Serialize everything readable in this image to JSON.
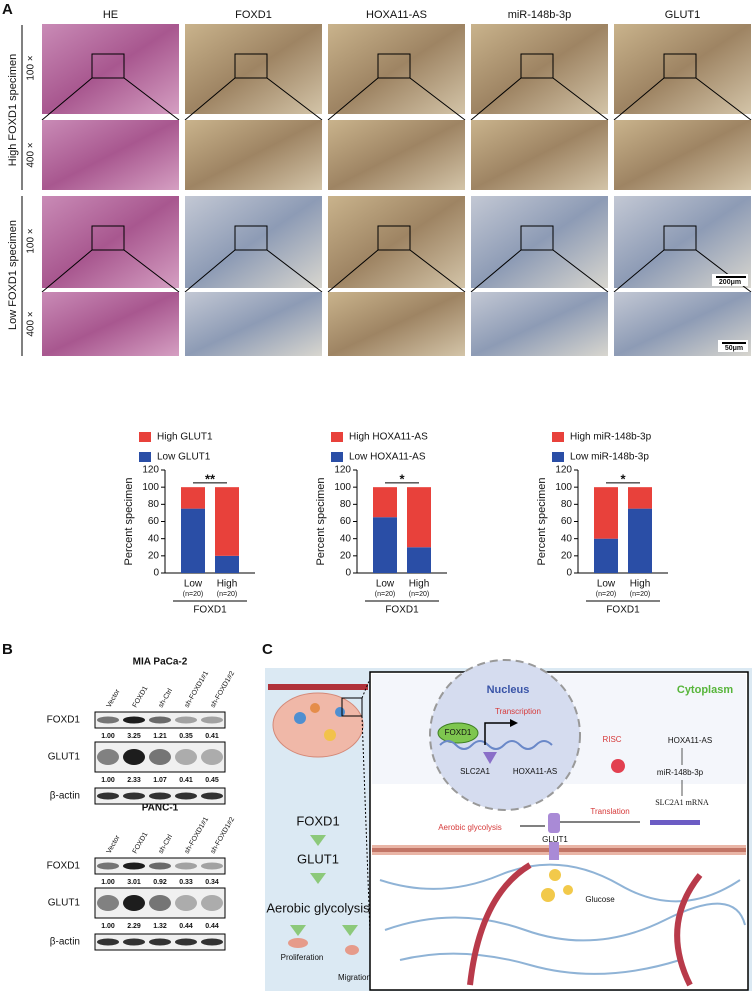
{
  "panel_a": {
    "label": "A",
    "columns": [
      "HE",
      "FOXD1",
      "HOXA11-AS",
      "miR-148b-3p",
      "GLUT1"
    ],
    "rows": [
      {
        "label": "High FOXD1 specimen",
        "magnifications": [
          "100 ×",
          "400 ×"
        ]
      },
      {
        "label": "Low FOXD1 specimen",
        "magnifications": [
          "100 ×",
          "400 ×"
        ]
      }
    ],
    "scale_bars": [
      "200μm",
      "50μm"
    ]
  },
  "chart_data": [
    {
      "type": "bar",
      "stacked": true,
      "y_label": "Percent specimen",
      "x_label": "FOXD1",
      "categories": [
        "Low",
        "High"
      ],
      "category_notes": [
        "(n=20)",
        "(n=20)"
      ],
      "series": [
        {
          "name": "Low GLUT1",
          "color": "#2a4ea6",
          "values": [
            75,
            20
          ]
        },
        {
          "name": "High GLUT1",
          "color": "#e8413b",
          "values": [
            25,
            80
          ]
        }
      ],
      "ylim": [
        0,
        120
      ],
      "yticks": [
        0,
        20,
        40,
        60,
        80,
        100,
        120
      ],
      "significance": "**"
    },
    {
      "type": "bar",
      "stacked": true,
      "y_label": "Percent specimen",
      "x_label": "FOXD1",
      "categories": [
        "Low",
        "High"
      ],
      "category_notes": [
        "(n=20)",
        "(n=20)"
      ],
      "series": [
        {
          "name": "Low HOXA11-AS",
          "color": "#2a4ea6",
          "values": [
            65,
            30
          ]
        },
        {
          "name": "High HOXA11-AS",
          "color": "#e8413b",
          "values": [
            35,
            70
          ]
        }
      ],
      "ylim": [
        0,
        120
      ],
      "yticks": [
        0,
        20,
        40,
        60,
        80,
        100,
        120
      ],
      "significance": "*"
    },
    {
      "type": "bar",
      "stacked": true,
      "y_label": "Percent specimen",
      "x_label": "FOXD1",
      "categories": [
        "Low",
        "High"
      ],
      "category_notes": [
        "(n=20)",
        "(n=20)"
      ],
      "series": [
        {
          "name": "Low miR-148b-3p",
          "color": "#2a4ea6",
          "values": [
            40,
            75
          ]
        },
        {
          "name": "High miR-148b-3p",
          "color": "#e8413b",
          "values": [
            60,
            25
          ]
        }
      ],
      "ylim": [
        0,
        120
      ],
      "yticks": [
        0,
        20,
        40,
        60,
        80,
        100,
        120
      ],
      "significance": "*"
    }
  ],
  "panel_b": {
    "label": "B",
    "blots": [
      {
        "cell_line": "MIA PaCa-2",
        "lanes": [
          "Vector",
          "FOXD1",
          "sh-Ctrl",
          "sh-FOXD1#1",
          "sh-FOXD1#2"
        ],
        "rows": [
          {
            "protein": "FOXD1",
            "quant": [
              "1.00",
              "3.25",
              "1.21",
              "0.35",
              "0.41"
            ]
          },
          {
            "protein": "GLUT1",
            "quant": [
              "1.00",
              "2.33",
              "1.07",
              "0.41",
              "0.45"
            ]
          },
          {
            "protein": "β-actin"
          }
        ]
      },
      {
        "cell_line": "PANC-1",
        "lanes": [
          "Vector",
          "FOXD1",
          "sh-Ctrl",
          "sh-FOXD1#1",
          "sh-FOXD1#2"
        ],
        "rows": [
          {
            "protein": "FOXD1",
            "quant": [
              "1.00",
              "3.01",
              "0.92",
              "0.33",
              "0.34"
            ]
          },
          {
            "protein": "GLUT1",
            "quant": [
              "1.00",
              "2.29",
              "1.32",
              "0.44",
              "0.44"
            ]
          },
          {
            "protein": "β-actin"
          }
        ]
      }
    ]
  },
  "panel_c": {
    "label": "C",
    "nucleus": "Nucleus",
    "cytoplasm": "Cytoplasm",
    "foxd1": "FOXD1",
    "transcription": "Transcription",
    "slc2a1": "SLC2A1",
    "hoxa11_as_gene": "HOXA11-AS",
    "risc": "RISC",
    "hoxa11_as": "HOXA11-AS",
    "mir": "miR-148b-3p",
    "mrna": "SLC2A1 mRNA",
    "translation": "Translation",
    "aerobic": "Aerobic glycolysis",
    "glut1": "GLUT1",
    "glucose": "Glucose",
    "flow": [
      "FOXD1",
      "GLUT1",
      "Aerobic glycolysis"
    ],
    "proliferation": "Proliferation",
    "migration": "Migration & invasion"
  }
}
